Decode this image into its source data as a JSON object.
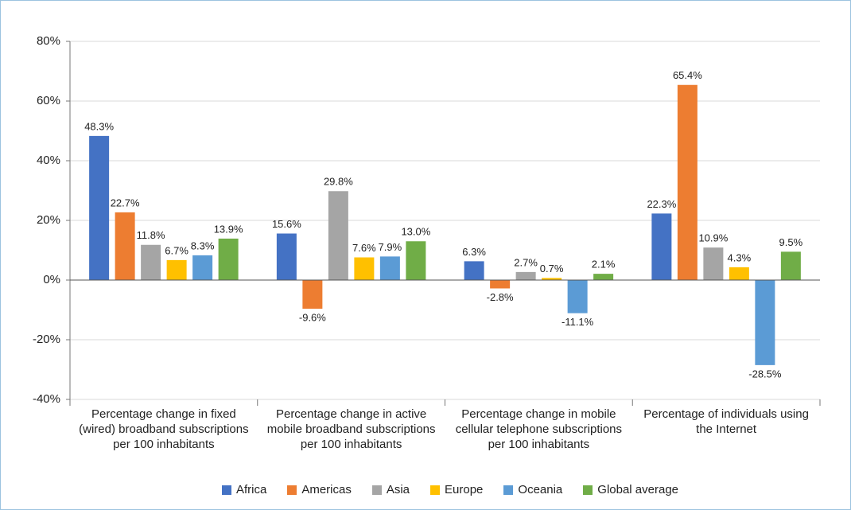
{
  "chart_data": {
    "type": "bar",
    "categories": [
      "Percentage change in fixed (wired) broadband subscriptions per 100 inhabitants",
      "Percentage change in active mobile broadband subscriptions per 100 inhabitants",
      "Percentage change in mobile cellular telephone subscriptions per 100 inhabitants",
      "Percentage of individuals using the Internet"
    ],
    "series": [
      {
        "name": "Africa",
        "color": "#4472c4",
        "values": [
          48.3,
          15.6,
          6.3,
          22.3
        ],
        "value_labels": [
          "48.3%",
          "15.6%",
          "6.3%",
          "22.3%"
        ]
      },
      {
        "name": "Americas",
        "color": "#ed7d31",
        "values": [
          22.7,
          -9.6,
          -2.8,
          65.4
        ],
        "value_labels": [
          "22.7%",
          "-9.6%",
          "-2.8%",
          "65.4%"
        ]
      },
      {
        "name": "Asia",
        "color": "#a5a5a5",
        "values": [
          11.8,
          29.8,
          2.7,
          10.9
        ],
        "value_labels": [
          "11.8%",
          "29.8%",
          "2.7%",
          "10.9%"
        ]
      },
      {
        "name": "Europe",
        "color": "#ffc000",
        "values": [
          6.7,
          7.6,
          0.7,
          4.3
        ],
        "value_labels": [
          "6.7%",
          "7.6%",
          "0.7%",
          "4.3%"
        ]
      },
      {
        "name": "Oceania",
        "color": "#5b9bd5",
        "values": [
          8.3,
          7.9,
          -11.1,
          -28.5
        ],
        "value_labels": [
          "8.3%",
          "7.9%",
          "-11.1%",
          "-28.5%"
        ]
      },
      {
        "name": "Global average",
        "color": "#70ad47",
        "values": [
          13.9,
          13.0,
          2.1,
          9.5
        ],
        "value_labels": [
          "13.9%",
          "13.0%",
          "2.1%",
          "9.5%"
        ]
      }
    ],
    "ylim": [
      -40,
      80
    ],
    "yticks": [
      {
        "value": -40,
        "label": "-40%"
      },
      {
        "value": -20,
        "label": "-20%"
      },
      {
        "value": 0,
        "label": "0%"
      },
      {
        "value": 20,
        "label": "20%"
      },
      {
        "value": 40,
        "label": "40%"
      },
      {
        "value": 60,
        "label": "60%"
      },
      {
        "value": 80,
        "label": "80%"
      }
    ],
    "grid": true,
    "legend": "bottom"
  }
}
